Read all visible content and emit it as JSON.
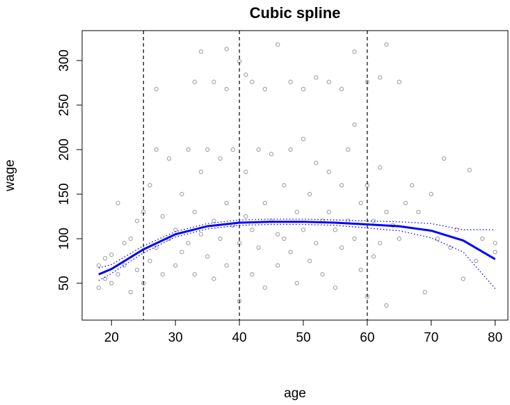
{
  "chart_data": {
    "type": "scatter",
    "title": "Cubic spline",
    "xlabel": "age",
    "ylabel": "wage",
    "xlim": [
      15.4,
      82
    ],
    "ylim": [
      8.6,
      333.6
    ],
    "xticks": [
      20,
      30,
      40,
      50,
      60,
      70,
      80
    ],
    "yticks": [
      50,
      100,
      150,
      200,
      250,
      300
    ],
    "point_color": "#a6a6a6",
    "x": [
      18,
      18,
      19,
      19,
      20,
      20,
      21,
      21,
      22,
      22,
      23,
      23,
      24,
      24,
      25,
      25,
      26,
      26,
      27,
      27,
      28,
      28,
      29,
      29,
      30,
      30,
      31,
      31,
      32,
      32,
      33,
      33,
      34,
      34,
      35,
      35,
      36,
      36,
      37,
      37,
      38,
      38,
      39,
      39,
      40,
      40,
      41,
      41,
      42,
      42,
      43,
      43,
      44,
      44,
      45,
      45,
      46,
      46,
      47,
      47,
      48,
      48,
      49,
      49,
      50,
      50,
      51,
      51,
      52,
      52,
      53,
      53,
      54,
      54,
      55,
      55,
      56,
      56,
      57,
      57,
      58,
      58,
      59,
      59,
      60,
      60,
      61,
      61,
      62,
      62,
      63,
      63,
      64,
      65,
      66,
      67,
      68,
      69,
      70,
      71,
      72,
      73,
      74,
      75,
      76,
      77,
      78,
      80,
      80,
      27,
      33,
      34,
      36,
      38,
      38,
      40,
      41,
      42,
      44,
      46,
      48,
      50,
      52,
      54,
      56,
      58,
      60,
      62,
      63,
      65
    ],
    "values": [
      70,
      45,
      78,
      55,
      82,
      50,
      140,
      60,
      95,
      70,
      100,
      40,
      120,
      65,
      130,
      50,
      160,
      75,
      200,
      90,
      125,
      60,
      190,
      100,
      110,
      70,
      150,
      85,
      200,
      95,
      130,
      60,
      175,
      105,
      200,
      80,
      120,
      55,
      190,
      100,
      140,
      70,
      200,
      115,
      95,
      30,
      175,
      125,
      110,
      60,
      200,
      90,
      140,
      45,
      195,
      120,
      105,
      70,
      160,
      100,
      200,
      85,
      130,
      50,
      212,
      110,
      150,
      75,
      185,
      95,
      120,
      60,
      175,
      130,
      110,
      45,
      160,
      90,
      200,
      120,
      228,
      100,
      140,
      65,
      160,
      35,
      120,
      80,
      180,
      95,
      130,
      25,
      115,
      100,
      140,
      160,
      130,
      40,
      150,
      100,
      190,
      90,
      110,
      55,
      177,
      75,
      100,
      95,
      85,
      268,
      276,
      310,
      276,
      313,
      268,
      299,
      284,
      276,
      268,
      318,
      276,
      268,
      281,
      276,
      268,
      310,
      276,
      281,
      318,
      276
    ],
    "fit": {
      "color": "#0000ff",
      "x": [
        18,
        20,
        25,
        30,
        35,
        40,
        45,
        50,
        55,
        60,
        65,
        70,
        75,
        80
      ],
      "values": [
        60,
        66,
        88,
        105,
        114,
        118,
        119,
        119,
        118,
        116,
        114,
        109,
        98,
        77
      ]
    },
    "upper": {
      "color": "#0000ff",
      "x": [
        18,
        20,
        25,
        30,
        35,
        40,
        45,
        50,
        55,
        60,
        65,
        70,
        75,
        80
      ],
      "values": [
        67,
        71,
        92,
        108,
        117,
        121,
        122,
        122,
        121,
        120,
        119,
        117,
        110,
        110
      ]
    },
    "lower": {
      "color": "#0000ff",
      "x": [
        18,
        20,
        25,
        30,
        35,
        40,
        45,
        50,
        55,
        60,
        65,
        70,
        75,
        80
      ],
      "values": [
        53,
        61,
        84,
        102,
        111,
        115,
        116,
        116,
        115,
        112,
        109,
        101,
        85,
        44
      ]
    },
    "knots": [
      25,
      40,
      60
    ]
  }
}
